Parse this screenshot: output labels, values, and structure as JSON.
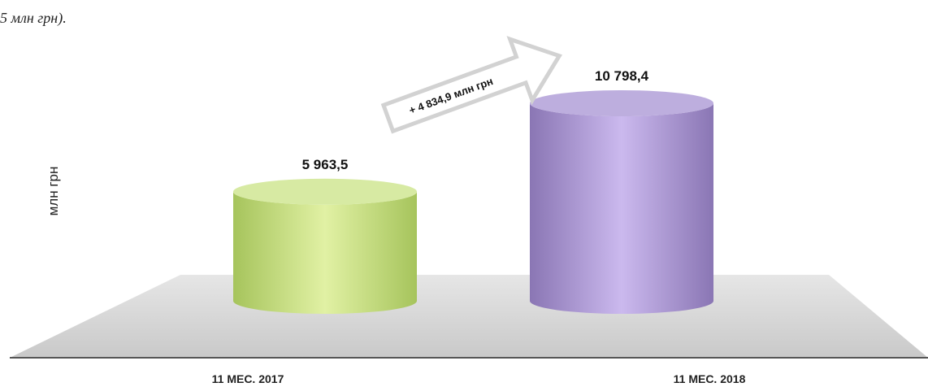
{
  "caption_fragment": "5 млн грн).",
  "chart_data": {
    "type": "bar",
    "style": "3d-cylinder",
    "categories": [
      "11 МЕС. 2017",
      "11 МЕС. 2018"
    ],
    "values": [
      5963.5,
      10798.4
    ],
    "value_labels": [
      "5 963,5",
      "10 798,4"
    ],
    "ylabel": "млн грн",
    "ylim": [
      0,
      12000
    ],
    "grid": false,
    "legend": "none",
    "annotation": "+ 4 834,9 млн грн",
    "colors": [
      "#c4de7c",
      "#a896cc"
    ]
  }
}
